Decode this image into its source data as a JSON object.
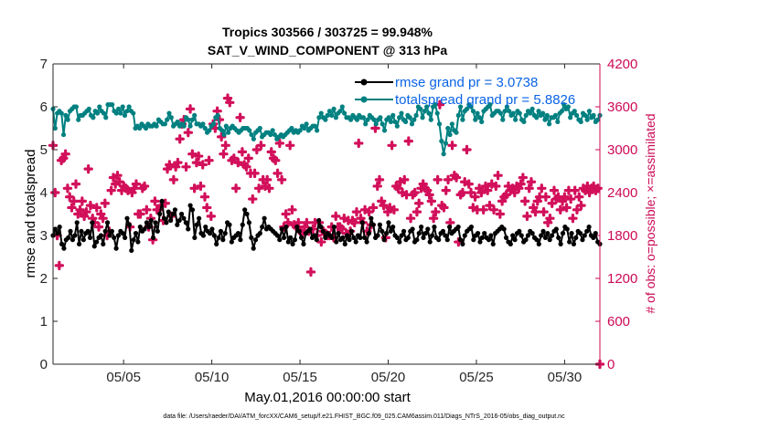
{
  "chart_data": {
    "type": "line",
    "title": "Tropics 303566 / 303725 = 99.948%",
    "subtitle": "SAT_V_WIND_COMPONENT @ 313 hPa",
    "xlabel": "May.01,2016 00:00:00 start",
    "ylabel": "rmse and totalspread",
    "ylabel_right": "# of obs: o=possible; ×=assimilated",
    "footer": "data file: /Users/raeder/DAI/ATM_forcXX/CAM6_setup/f.e21.FHIST_BGC.f09_025.CAM6assim.011/Diags_NTrS_2016-05/obs_diag_output.nc",
    "xlim": [
      1.0,
      32.0
    ],
    "ylim": [
      0,
      7
    ],
    "ylim_right": [
      0,
      4200
    ],
    "x_ticks": [
      5,
      10,
      15,
      20,
      25,
      30
    ],
    "x_tick_labels": [
      "05/05",
      "05/10",
      "05/15",
      "05/20",
      "05/25",
      "05/30"
    ],
    "y_ticks": [
      0,
      1,
      2,
      3,
      4,
      5,
      6,
      7
    ],
    "y_right_ticks": [
      0,
      600,
      1200,
      1800,
      2400,
      3000,
      3600,
      4200
    ],
    "legend": [
      "rmse grand pr = 3.0738",
      "totalspread grand pr = 5.8826"
    ],
    "series": [
      {
        "name": "rmse",
        "color": "#000000",
        "axis": "left",
        "values": [
          3.0,
          3.15,
          3.05,
          3.2,
          2.8,
          2.7,
          2.9,
          2.95,
          3.1,
          2.9,
          3.0,
          3.3,
          2.8,
          3.1,
          2.9,
          3.05,
          3.1,
          2.95,
          3.3,
          2.75,
          2.85,
          2.95,
          3.0,
          2.8,
          3.1,
          3.3,
          3.0,
          3.1,
          2.95,
          2.7,
          3.0,
          3.1,
          3.05,
          2.95,
          3.4,
          3.25,
          2.65,
          2.9,
          3.05,
          2.85,
          3.2,
          3.1,
          3.15,
          3.3,
          3.2,
          3.35,
          2.95,
          3.3,
          3.1,
          3.5,
          3.8,
          3.4,
          3.3,
          3.55,
          3.35,
          3.5,
          3.6,
          3.25,
          3.35,
          3.5,
          3.4,
          3.3,
          3.15,
          3.7,
          3.6,
          2.95,
          3.25,
          3.4,
          3.05,
          3.0,
          3.2,
          3.1,
          3.05,
          3.15,
          3.0,
          2.8,
          2.95,
          3.1,
          2.9,
          3.05,
          3.3,
          3.25,
          2.85,
          2.95,
          3.0,
          3.05,
          2.9,
          3.25,
          3.6,
          3.5,
          3.3,
          2.95,
          2.7,
          2.9,
          3.0,
          3.05,
          3.2,
          3.4,
          3.15,
          3.2,
          3.15,
          3.1,
          3.05,
          3.0,
          2.9,
          3.15,
          2.95,
          3.2,
          2.85,
          2.95,
          2.8,
          2.9,
          3.2,
          3.1,
          2.95,
          2.8,
          3.05,
          3.1,
          3.15,
          2.95,
          3.0,
          2.9,
          3.35,
          3.2,
          3.1,
          2.95,
          3.05,
          3.0,
          2.95,
          3.2,
          2.85,
          3.05,
          2.9,
          2.95,
          2.8,
          3.0,
          2.9,
          3.1,
          2.95,
          2.85,
          3.0,
          2.95,
          3.3,
          2.95,
          2.85,
          3.05,
          3.4,
          3.25,
          2.95,
          3.0,
          3.25,
          3.1,
          2.9,
          3.05,
          3.3,
          3.1,
          3.2,
          3.0,
          2.95,
          2.85,
          3.0,
          3.1,
          2.9,
          2.95,
          3.1,
          3.15,
          2.85,
          2.9,
          3.05,
          3.2,
          2.95,
          3.05,
          3.15,
          2.85,
          3.0,
          3.2,
          2.95,
          2.9,
          3.05,
          3.1,
          3.0,
          2.9,
          3.2,
          3.05,
          3.1,
          3.15,
          3.2,
          2.9,
          2.8,
          3.0,
          3.1,
          3.15,
          3.2,
          2.9,
          3.0,
          3.05,
          2.85,
          2.95,
          3.05,
          2.95,
          2.9,
          3.0,
          2.8,
          3.05,
          3.1,
          3.15,
          3.2,
          3.15,
          2.95,
          2.85,
          2.8,
          3.0,
          2.9,
          3.05,
          3.1,
          3.0,
          2.85,
          2.9,
          3.0,
          3.1,
          3.05,
          2.95,
          2.9,
          2.8,
          3.0,
          3.1,
          2.95,
          3.05,
          2.9,
          3.0,
          3.1,
          3.15,
          2.95,
          2.8,
          3.05,
          3.2,
          3.15,
          2.85,
          3.05,
          2.8,
          2.95,
          3.1,
          3.05,
          2.9,
          3.0,
          3.1,
          3.2,
          3.0,
          2.95,
          3.05,
          2.85,
          2.8
        ]
      },
      {
        "name": "totalspread",
        "color": "#008080",
        "axis": "left",
        "values": [
          5.95,
          5.5,
          5.85,
          5.9,
          5.85,
          5.35,
          5.8,
          5.7,
          5.9,
          5.95,
          6.0,
          6.0,
          5.7,
          5.8,
          5.8,
          5.85,
          5.9,
          5.95,
          5.8,
          5.75,
          5.9,
          5.85,
          6.0,
          5.9,
          5.85,
          5.75,
          6.05,
          6.05,
          6.05,
          5.9,
          5.85,
          5.95,
          5.85,
          6.0,
          5.8,
          5.9,
          6.0,
          5.9,
          5.85,
          5.5,
          5.55,
          5.5,
          5.6,
          5.55,
          5.5,
          5.6,
          5.55,
          5.55,
          5.6,
          5.55,
          5.7,
          5.65,
          5.6,
          5.6,
          5.7,
          5.85,
          5.75,
          5.55,
          5.6,
          5.65,
          5.55,
          5.6,
          5.55,
          5.75,
          5.7,
          5.55,
          5.7,
          5.8,
          5.6,
          5.6,
          5.55,
          5.6,
          5.5,
          5.4,
          5.45,
          5.55,
          5.6,
          5.75,
          5.8,
          5.5,
          5.45,
          5.35,
          5.55,
          5.4,
          5.5,
          5.55,
          5.5,
          5.45,
          5.4,
          5.45,
          5.5,
          5.5,
          5.5,
          5.45,
          5.35,
          5.25,
          5.4,
          5.45,
          5.5,
          5.3,
          5.35,
          5.4,
          5.4,
          5.35,
          5.45,
          5.35,
          5.25,
          5.3,
          5.35,
          5.3,
          5.35,
          5.4,
          5.45,
          5.5,
          5.4,
          5.45,
          5.4,
          5.45,
          5.55,
          5.5,
          5.6,
          5.45,
          5.5,
          5.55,
          5.55,
          5.45,
          5.75,
          5.85,
          5.75,
          5.7,
          5.8,
          5.9,
          5.8,
          5.95,
          5.75,
          5.85,
          5.9,
          6.0,
          5.85,
          5.75,
          5.75,
          5.7,
          5.8,
          5.75,
          5.7,
          5.8,
          5.75,
          5.75,
          5.6,
          5.7,
          5.8,
          5.75,
          5.7,
          5.6,
          5.7,
          5.75,
          5.6,
          5.45,
          5.7,
          5.75,
          5.65,
          5.8,
          5.65,
          5.55,
          5.75,
          5.85,
          5.7,
          5.65,
          5.8,
          5.75,
          5.6,
          5.7,
          5.8,
          6.0,
          5.95,
          5.75,
          5.9,
          6.0,
          5.85,
          5.7,
          6.0,
          6.05,
          5.85,
          5.6,
          5.2,
          4.9,
          5.15,
          5.5,
          5.35,
          5.6,
          5.45,
          5.4,
          5.8,
          6.0,
          5.7,
          5.9,
          5.95,
          6.05,
          6.0,
          5.9,
          5.7,
          5.85,
          5.75,
          5.65,
          5.9,
          5.95,
          6.0,
          6.05,
          5.8,
          5.85,
          5.9,
          5.9,
          5.85,
          5.7,
          5.9,
          6.0,
          5.9,
          5.8,
          5.85,
          5.7,
          5.9,
          5.85,
          5.7,
          5.65,
          5.8,
          5.9,
          5.85,
          5.95,
          5.8,
          5.75,
          5.9,
          5.8,
          5.85,
          5.7,
          5.8,
          5.6,
          5.75,
          5.75,
          5.8,
          5.65,
          5.85,
          5.9,
          6.05,
          5.95,
          6.0,
          5.75,
          5.85,
          5.9,
          5.8,
          5.7,
          5.65,
          5.85,
          5.8,
          5.7,
          5.9,
          5.75,
          5.8,
          5.65,
          5.7,
          5.8
        ]
      },
      {
        "name": "# of obs assimilated",
        "color": "#d20f5a",
        "axis": "right",
        "marker": "plus",
        "values": [
          3060,
          2400,
          1800,
          1380,
          2850,
          2880,
          2940,
          2460,
          2340,
          2190,
          2280,
          2520,
          2100,
          2160,
          2280,
          2070,
          2130,
          2730,
          2220,
          2040,
          1980,
          2190,
          1920,
          2100,
          2040,
          2250,
          1800,
          1860,
          2430,
          2610,
          2520,
          2640,
          2550,
          2430,
          2490,
          2460,
          2430,
          1920,
          2400,
          2460,
          2520,
          2100,
          2100,
          2460,
          2490,
          2160,
          1920,
          2040,
          1740,
          2280,
          2160,
          2160,
          2220,
          2010,
          2250,
          2730,
          2790,
          2070,
          2580,
          2760,
          2820,
          3150,
          3360,
          3420,
          2760,
          3240,
          3570,
          2940,
          2460,
          2820,
          2910,
          2490,
          2790,
          2340,
          2190,
          2850,
          2070,
          3360,
          3300,
          3540,
          3420,
          3180,
          2940,
          3060,
          3720,
          3660,
          2850,
          2880,
          2460,
          2820,
          3450,
          2970,
          2790,
          2760,
          2880,
          2670,
          2310,
          2670,
          3000,
          2460,
          3060,
          2580,
          2490,
          2580,
          2460,
          2970,
          2880,
          2850,
          2670,
          3090,
          2580,
          1920,
          2100,
          1980,
          3060,
          2160,
          1950,
          1920,
          1980,
          1860,
          1830,
          1920,
          1980,
          1860,
          1290,
          1890,
          1980,
          1800,
          1980,
          1710,
          1860,
          1830,
          1800,
          1800,
          1920,
          1770,
          2070,
          1920,
          1920,
          1890,
          2040,
          1830,
          2010,
          1860,
          2010,
          1980,
          2130,
          3090,
          2040,
          1980,
          2160,
          1860,
          2130,
          1950,
          2190,
          3300,
          2490,
          2580,
          2280,
          2220,
          1770,
          2130,
          2190,
          3060,
          2160,
          2490,
          2460,
          2550,
          2400,
          2580,
          2370,
          3120,
          2040,
          2370,
          2400,
          2130,
          2250,
          2460,
          2520,
          2460,
          2430,
          2370,
          2280,
          2040,
          2130,
          2580,
          3630,
          2220,
          2190,
          2430,
          2580,
          1980,
          3060,
          2640,
          2610,
          1710,
          2370,
          2400,
          2550,
          3000,
          2520,
          2400,
          2190,
          2340,
          2160,
          2460,
          2400,
          2160,
          2490,
          2430,
          2220,
          2520,
          2160,
          2490,
          2640,
          2100,
          2280,
          2340,
          2370,
          2490,
          2430,
          2460,
          2400,
          2490,
          2460,
          2520,
          2610,
          2280,
          2070,
          2460,
          2550,
          2190,
          2130,
          2280,
          2340,
          2460,
          2130,
          2340,
          1980,
          2040,
          2250,
          2430,
          2310,
          2340,
          2160,
          2280,
          2340,
          2190,
          2430,
          2310,
          2040,
          2430,
          2160,
          2340,
          2220,
          2460,
          2430,
          2490,
          2400,
          2460,
          2490,
          2430,
          2460,
          0
        ]
      }
    ]
  }
}
